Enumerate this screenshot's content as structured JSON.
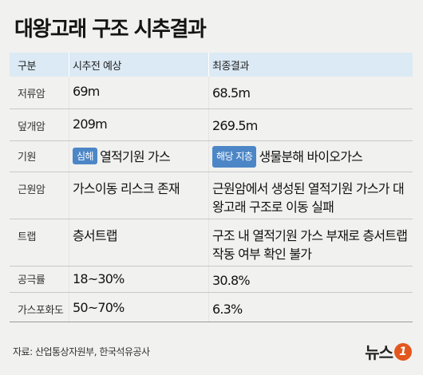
{
  "title": "대왕고래 구조 시추결과",
  "table": {
    "headers": [
      "구분",
      "시추전 예상",
      "최종결과"
    ],
    "rows": [
      {
        "label": "저류암",
        "before": "69m",
        "after": "68.5m"
      },
      {
        "label": "덮개암",
        "before": "209m",
        "after": "269.5m"
      },
      {
        "label": "기원",
        "before_badge": "심해",
        "before": "열적기원 가스",
        "after_badge": "해당 지층",
        "after": "생물분해 바이오가스"
      },
      {
        "label": "근원암",
        "before": "가스이동 리스크 존재",
        "after": "근원암에서 생성된 열적기원 가스가 대왕고래 구조로 이동 실패"
      },
      {
        "label": "트랩",
        "before": "층서트랩",
        "after": "구조 내 열적기원 가스 부재로 층서트랩 작동 여부 확인 불가"
      },
      {
        "label": "공극률",
        "before": "18~30%",
        "after": "30.8%"
      },
      {
        "label": "가스포화도",
        "before": "50~70%",
        "after": "6.3%"
      }
    ]
  },
  "source": "자료: 산업통상자원부, 한국석유공사",
  "logo": {
    "text": "뉴스",
    "mark": "1"
  },
  "colors": {
    "header_bg": "#dbeaf4",
    "badge": "#4c86c6",
    "logo_mark": "#e2571d",
    "background": "#f1f1ef"
  }
}
